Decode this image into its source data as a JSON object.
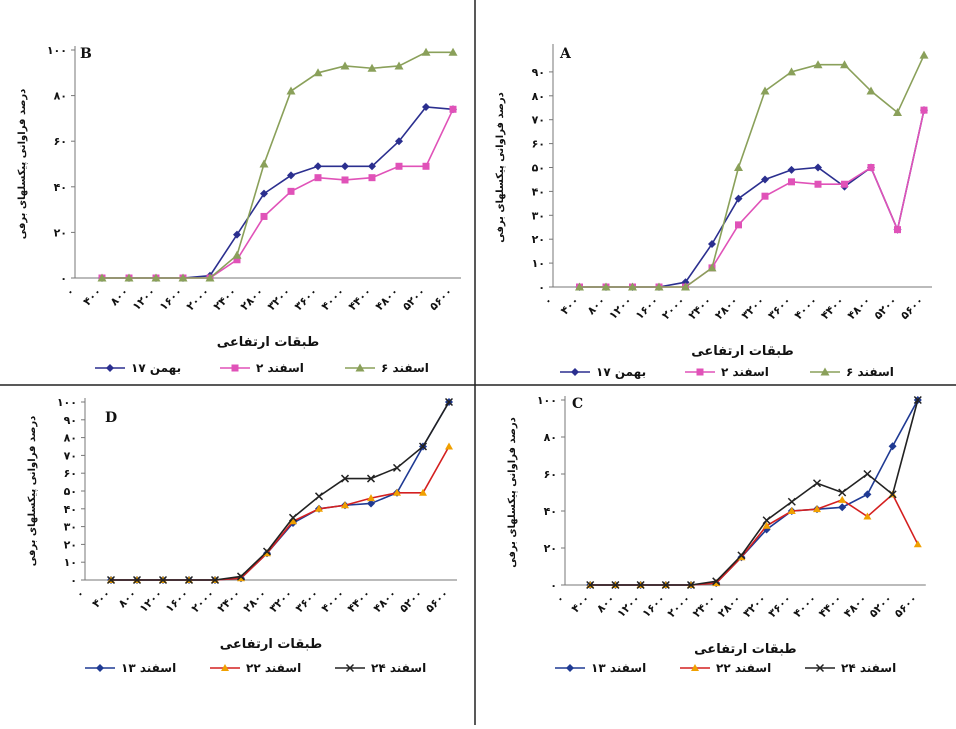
{
  "chart_data": [
    {
      "type": "line",
      "title": "B",
      "x_label": "طبقات ارتفاعی",
      "y_label": "درصد فراوانی پیکسلهای برفی",
      "categories": [
        "۰",
        "۴۰۰",
        "۸۰۰",
        "۱۲۰۰",
        "۱۶۰۰",
        "۲۰۰۰",
        "۲۴۰۰",
        "۲۸۰۰",
        "۳۲۰۰",
        "۳۶۰۰",
        "۴۰۰۰",
        "۴۴۰۰",
        "۴۸۰۰",
        "۵۲۰۰",
        "۵۶۰۰"
      ],
      "ylim": [
        0,
        100
      ],
      "yticks": [
        {
          "value": 0,
          "label": "۰"
        },
        {
          "value": 20,
          "label": "۲۰"
        },
        {
          "value": 40,
          "label": "۴۰"
        },
        {
          "value": 60,
          "label": "۶۰"
        },
        {
          "value": 80,
          "label": "۸۰"
        },
        {
          "value": 100,
          "label": "۱۰۰"
        }
      ],
      "series": [
        {
          "name": "۱۷ بهمن",
          "color": "#2b2f8f",
          "marker": "diamond",
          "values": [
            null,
            0,
            0,
            0,
            0,
            1,
            19,
            37,
            45,
            49,
            49,
            49,
            60,
            75,
            74
          ]
        },
        {
          "name": "۲ اسفند",
          "color": "#e052b8",
          "marker": "square",
          "values": [
            null,
            0,
            0,
            0,
            0,
            0,
            8,
            27,
            38,
            44,
            43,
            44,
            49,
            49,
            74
          ]
        },
        {
          "name": "۶ اسفند",
          "color": "#8aa05a",
          "marker": "triangle",
          "values": [
            null,
            0,
            0,
            0,
            0,
            0,
            10,
            50,
            82,
            90,
            93,
            92,
            93,
            99,
            99
          ]
        }
      ]
    },
    {
      "type": "line",
      "title": "A",
      "x_label": "طبقات ارتفاعی",
      "y_label": "درصد فراوانی پیکسلهای برفی",
      "categories": [
        "۰",
        "۴۰۰",
        "۸۰۰",
        "۱۲۰۰",
        "۱۶۰۰",
        "۲۰۰۰",
        "۲۴۰۰",
        "۲۸۰۰",
        "۳۲۰۰",
        "۳۶۰۰",
        "۴۰۰۰",
        "۴۴۰۰",
        "۴۸۰۰",
        "۵۲۰۰",
        "۵۶۰۰"
      ],
      "ylim": [
        0,
        100
      ],
      "yticks": [
        {
          "value": 0,
          "label": "۰"
        },
        {
          "value": 10,
          "label": "۱۰"
        },
        {
          "value": 20,
          "label": "۲۰"
        },
        {
          "value": 30,
          "label": "۳۰"
        },
        {
          "value": 40,
          "label": "۴۰"
        },
        {
          "value": 50,
          "label": "۵۰"
        },
        {
          "value": 60,
          "label": "۶۰"
        },
        {
          "value": 70,
          "label": "۷۰"
        },
        {
          "value": 80,
          "label": "۸۰"
        },
        {
          "value": 90,
          "label": "۹۰"
        }
      ],
      "series": [
        {
          "name": "۱۷ بهمن",
          "color": "#2b2f8f",
          "marker": "diamond",
          "values": [
            null,
            0,
            0,
            0,
            0,
            2,
            18,
            37,
            45,
            49,
            50,
            42,
            50,
            24,
            74
          ]
        },
        {
          "name": "۲ اسفند",
          "color": "#e052b8",
          "marker": "square",
          "values": [
            null,
            0,
            0,
            0,
            0,
            0,
            8,
            26,
            38,
            44,
            43,
            43,
            50,
            24,
            74
          ]
        },
        {
          "name": "۶ اسفند",
          "color": "#8aa05a",
          "marker": "triangle",
          "values": [
            null,
            0,
            0,
            0,
            0,
            0,
            8,
            50,
            82,
            90,
            93,
            93,
            82,
            73,
            97
          ]
        }
      ]
    },
    {
      "type": "line",
      "title": "D",
      "x_label": "طبقات ارتفاعی",
      "y_label": "درصد فراوانی پیکسلهای برفی",
      "categories": [
        "۰",
        "۴۰۰",
        "۸۰۰",
        "۱۲۰۰",
        "۱۶۰۰",
        "۲۰۰۰",
        "۲۴۰۰",
        "۲۸۰۰",
        "۳۲۰۰",
        "۳۶۰۰",
        "۴۰۰۰",
        "۴۴۰۰",
        "۴۸۰۰",
        "۵۲۰۰",
        "۵۶۰۰"
      ],
      "ylim": [
        0,
        100
      ],
      "yticks": [
        {
          "value": 0,
          "label": "۰"
        },
        {
          "value": 10,
          "label": "۱۰"
        },
        {
          "value": 20,
          "label": "۲۰"
        },
        {
          "value": 30,
          "label": "۳۰"
        },
        {
          "value": 40,
          "label": "۴۰"
        },
        {
          "value": 50,
          "label": "۵۰"
        },
        {
          "value": 60,
          "label": "۶۰"
        },
        {
          "value": 70,
          "label": "۷۰"
        },
        {
          "value": 80,
          "label": "۸۰"
        },
        {
          "value": 90,
          "label": "۹۰"
        },
        {
          "value": 100,
          "label": "۱۰۰"
        }
      ],
      "series": [
        {
          "name": "۱۳ اسفند",
          "color": "#1f3a93",
          "marker": "diamond",
          "values": [
            null,
            0,
            0,
            0,
            0,
            0,
            1,
            15,
            32,
            40,
            42,
            43,
            49,
            75,
            100
          ]
        },
        {
          "name": "۲۲ اسفند",
          "color": "#d42020",
          "marker": "triangle-orange",
          "values": [
            null,
            0,
            0,
            0,
            0,
            0,
            1,
            15,
            33,
            40,
            42,
            46,
            49,
            49,
            75
          ]
        },
        {
          "name": "۲۴ اسفند",
          "color": "#222222",
          "marker": "x",
          "values": [
            null,
            0,
            0,
            0,
            0,
            0,
            2,
            16,
            35,
            47,
            57,
            57,
            63,
            75,
            100
          ]
        }
      ]
    },
    {
      "type": "line",
      "title": "C",
      "x_label": "طبقات ارتفاعی",
      "y_label": "درصد فراوانی پیکسلهای برفی",
      "categories": [
        "۰",
        "۴۰۰",
        "۸۰۰",
        "۱۲۰۰",
        "۱۶۰۰",
        "۲۰۰۰",
        "۲۴۰۰",
        "۲۸۰۰",
        "۳۲۰۰",
        "۳۶۰۰",
        "۴۰۰۰",
        "۴۴۰۰",
        "۴۸۰۰",
        "۵۲۰۰",
        "۵۶۰۰"
      ],
      "ylim": [
        0,
        100
      ],
      "yticks": [
        {
          "value": 0,
          "label": "۰"
        },
        {
          "value": 20,
          "label": "۲۰"
        },
        {
          "value": 40,
          "label": "۴۰"
        },
        {
          "value": 60,
          "label": "۶۰"
        },
        {
          "value": 80,
          "label": "۸۰"
        },
        {
          "value": 100,
          "label": "۱۰۰"
        }
      ],
      "series": [
        {
          "name": "۱۳ اسفند",
          "color": "#1f3a93",
          "marker": "diamond",
          "values": [
            null,
            0,
            0,
            0,
            0,
            0,
            1,
            15,
            30,
            40,
            41,
            42,
            49,
            75,
            100
          ]
        },
        {
          "name": "۲۲ اسفند",
          "color": "#d42020",
          "marker": "triangle-orange",
          "values": [
            null,
            0,
            0,
            0,
            0,
            0,
            1,
            15,
            32,
            40,
            41,
            46,
            37,
            49,
            22
          ]
        },
        {
          "name": "۲۴ اسفند",
          "color": "#222222",
          "marker": "x",
          "values": [
            null,
            0,
            0,
            0,
            0,
            0,
            2,
            16,
            35,
            45,
            55,
            50,
            60,
            49,
            100
          ]
        }
      ]
    }
  ]
}
